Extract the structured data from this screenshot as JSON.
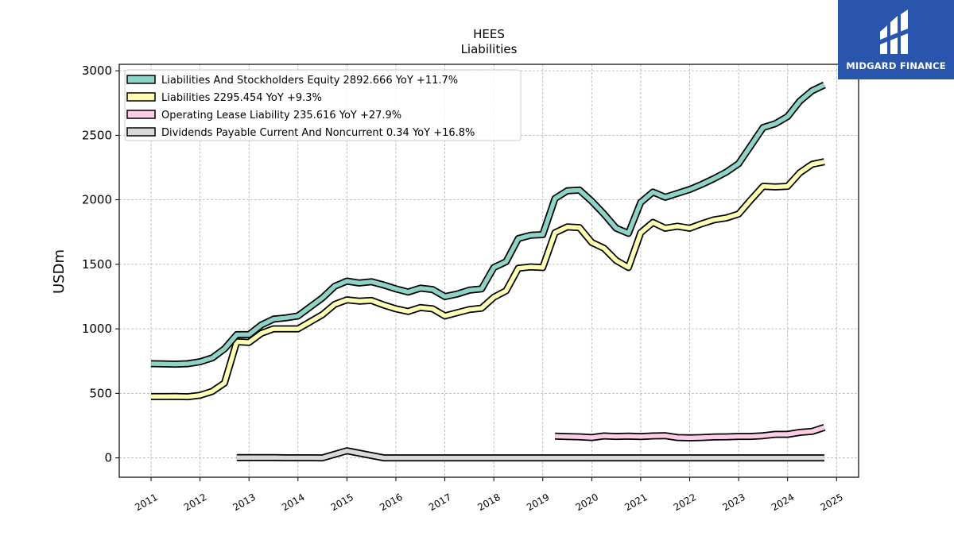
{
  "brand": {
    "name": "MIDGARD FINANCE",
    "color": "#2a55ad"
  },
  "chart_data": {
    "type": "line",
    "title": "HEES",
    "subtitle": "Liabilities",
    "ylabel": "USDm",
    "xlabel": "",
    "ylim": [
      -150,
      3050
    ],
    "xlim": [
      2010.35,
      2025.45
    ],
    "grid": true,
    "legend_position": "top-left",
    "y_ticks": [
      0,
      500,
      1000,
      1500,
      2000,
      2500,
      3000
    ],
    "x_ticks": [
      2011,
      2012,
      2013,
      2014,
      2015,
      2016,
      2017,
      2018,
      2019,
      2020,
      2021,
      2022,
      2023,
      2024,
      2025
    ],
    "series": [
      {
        "name": "Liabilities And Stockholders Equity",
        "legend_label": "Liabilities And Stockholders Equity  2892.666 YoY +11.7%",
        "color": "#8dd3c7",
        "x": [
          2011.0,
          2011.25,
          2011.5,
          2011.75,
          2012.0,
          2012.25,
          2012.5,
          2012.75,
          2013.0,
          2013.25,
          2013.5,
          2013.75,
          2014.0,
          2014.25,
          2014.5,
          2014.75,
          2015.0,
          2015.25,
          2015.5,
          2015.75,
          2016.0,
          2016.25,
          2016.5,
          2016.75,
          2017.0,
          2017.25,
          2017.5,
          2017.75,
          2018.0,
          2018.25,
          2018.5,
          2018.75,
          2019.0,
          2019.25,
          2019.5,
          2019.75,
          2020.0,
          2020.25,
          2020.5,
          2020.75,
          2021.0,
          2021.25,
          2021.5,
          2021.75,
          2022.0,
          2022.25,
          2022.5,
          2022.75,
          2023.0,
          2023.25,
          2023.5,
          2023.75,
          2024.0,
          2024.25,
          2024.5,
          2024.75
        ],
        "values": [
          730,
          728,
          726,
          730,
          745,
          775,
          845,
          955,
          955,
          1030,
          1075,
          1085,
          1100,
          1170,
          1240,
          1330,
          1370,
          1355,
          1365,
          1340,
          1310,
          1285,
          1315,
          1305,
          1250,
          1270,
          1300,
          1310,
          1475,
          1520,
          1700,
          1725,
          1730,
          2010,
          2070,
          2075,
          1990,
          1890,
          1780,
          1740,
          1980,
          2060,
          2020,
          2050,
          2080,
          2120,
          2165,
          2215,
          2280,
          2420,
          2560,
          2590,
          2645,
          2765,
          2845,
          2890
        ]
      },
      {
        "name": "Liabilities",
        "legend_label": "Liabilities  2295.454 YoY +9.3%",
        "color": "#ffffb3",
        "x": [
          2011.0,
          2011.25,
          2011.5,
          2011.75,
          2012.0,
          2012.25,
          2012.5,
          2012.75,
          2013.0,
          2013.25,
          2013.5,
          2013.75,
          2014.0,
          2014.25,
          2014.5,
          2014.75,
          2015.0,
          2015.25,
          2015.5,
          2015.75,
          2016.0,
          2016.25,
          2016.5,
          2016.75,
          2017.0,
          2017.25,
          2017.5,
          2017.75,
          2018.0,
          2018.25,
          2018.5,
          2018.75,
          2019.0,
          2019.25,
          2019.5,
          2019.75,
          2020.0,
          2020.25,
          2020.5,
          2020.75,
          2021.0,
          2021.25,
          2021.5,
          2021.75,
          2022.0,
          2022.25,
          2022.5,
          2022.75,
          2023.0,
          2023.25,
          2023.5,
          2023.75,
          2024.0,
          2024.25,
          2024.5,
          2024.75
        ],
        "values": [
          475,
          475,
          476,
          474,
          485,
          515,
          580,
          900,
          895,
          965,
          1000,
          1000,
          1000,
          1055,
          1110,
          1190,
          1225,
          1215,
          1220,
          1185,
          1155,
          1135,
          1165,
          1155,
          1100,
          1125,
          1150,
          1160,
          1245,
          1295,
          1470,
          1480,
          1475,
          1745,
          1790,
          1785,
          1670,
          1625,
          1530,
          1475,
          1745,
          1825,
          1780,
          1795,
          1780,
          1815,
          1845,
          1860,
          1890,
          2000,
          2105,
          2100,
          2105,
          2210,
          2275,
          2295
        ]
      },
      {
        "name": "Operating Lease Liability",
        "legend_label": "Operating Lease Liability  235.616 YoY +27.9%",
        "color": "#fccde5",
        "x": [
          2019.25,
          2019.5,
          2019.75,
          2020.0,
          2020.25,
          2020.5,
          2020.75,
          2021.0,
          2021.25,
          2021.5,
          2021.75,
          2022.0,
          2022.25,
          2022.5,
          2022.75,
          2023.0,
          2023.25,
          2023.5,
          2023.75,
          2024.0,
          2024.25,
          2024.5,
          2024.75
        ],
        "values": [
          168,
          165,
          163,
          158,
          170,
          166,
          168,
          165,
          170,
          172,
          158,
          155,
          158,
          162,
          163,
          166,
          166,
          172,
          182,
          182,
          198,
          205,
          236
        ]
      },
      {
        "name": "Dividends Payable Current And Noncurrent",
        "legend_label": "Dividends Payable Current And Noncurrent  0.34 YoY +16.8%",
        "color": "#d9d9d9",
        "x": [
          2012.75,
          2013.0,
          2013.25,
          2013.5,
          2013.75,
          2014.0,
          2014.25,
          2014.5,
          2015.0,
          2015.75,
          2016.0,
          2017.0,
          2018.0,
          2019.0,
          2020.0,
          2021.0,
          2022.0,
          2023.0,
          2024.0,
          2024.75
        ],
        "values": [
          2,
          2,
          2,
          2,
          1,
          1,
          1,
          0,
          55,
          0.3,
          0.3,
          0.3,
          0.3,
          0.3,
          0.3,
          0.3,
          0.3,
          0.3,
          0.3,
          0.34
        ]
      }
    ]
  }
}
